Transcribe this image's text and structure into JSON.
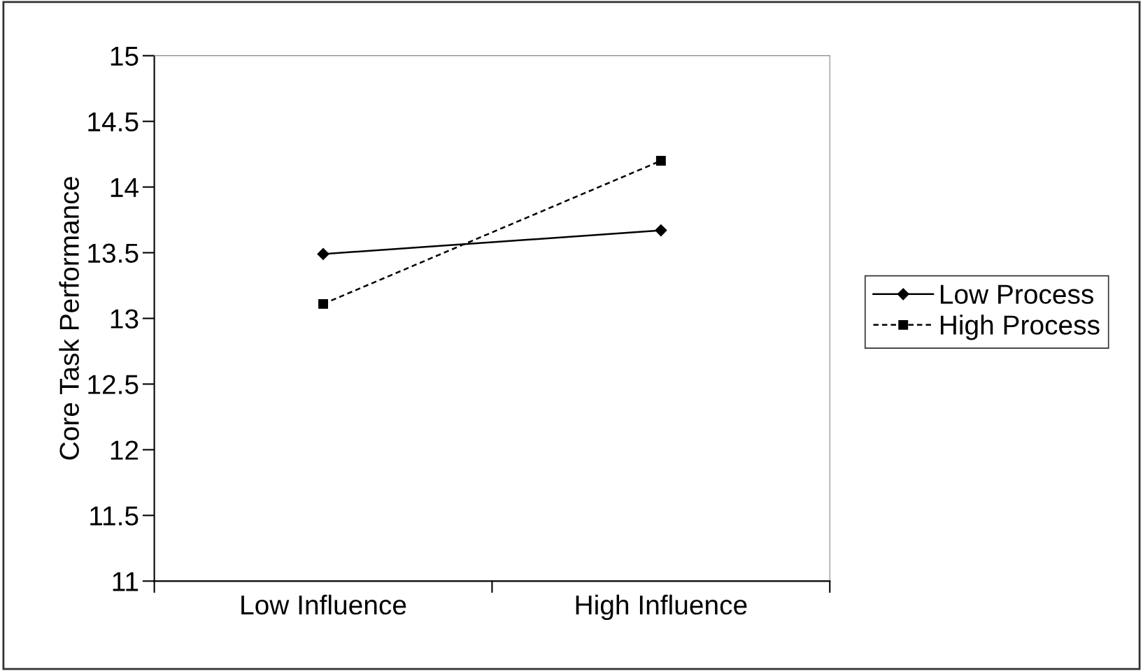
{
  "chart_data": {
    "type": "line",
    "ylabel": "Core Task Performance",
    "categories": [
      "Low Influence",
      "High Influence"
    ],
    "series": [
      {
        "name": "Low Process",
        "color": "#000000",
        "values": [
          13.49,
          13.67
        ],
        "marker": "diamond",
        "line_style": "solid"
      },
      {
        "name": "High Process",
        "color": "#000000",
        "values": [
          13.11,
          14.2
        ],
        "marker": "square",
        "line_style": "dashed"
      }
    ],
    "ylim": [
      11,
      15
    ],
    "yticks": [
      11,
      11.5,
      12,
      12.5,
      13,
      13.5,
      14,
      14.5,
      15
    ],
    "grid": false,
    "legend": "right"
  }
}
